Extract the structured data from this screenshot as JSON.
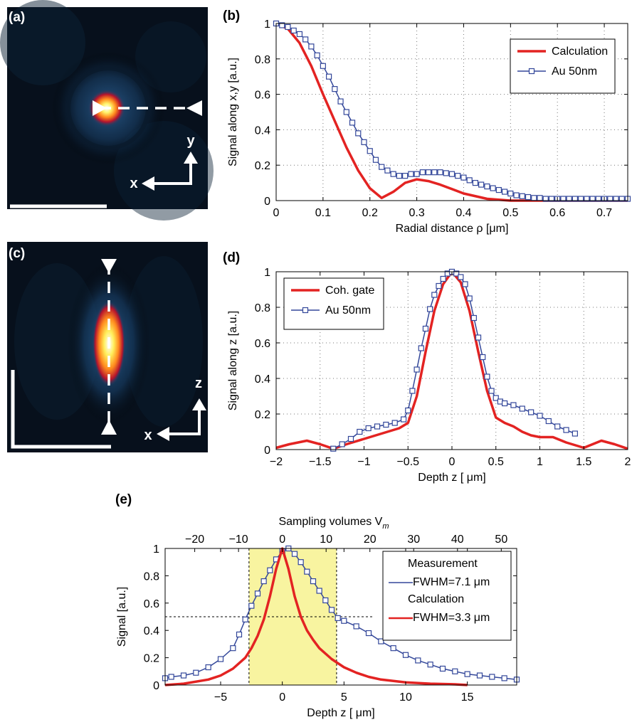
{
  "panels": {
    "a": "(a)",
    "b": "(b)",
    "c": "(c)",
    "d": "(d)",
    "e": "(e)"
  },
  "image_a": {
    "axis_x": "x",
    "axis_y": "y"
  },
  "image_c": {
    "axis_x": "x",
    "axis_z": "z"
  },
  "colors": {
    "calculation": "#e32322",
    "measurement": "#33479a",
    "fwhm_band": "#f8f4a0"
  },
  "chart_data": [
    {
      "type": "line",
      "panel": "(b)",
      "title": "",
      "xlabel": "Radial distance ρ [μm]",
      "ylabel": "Signal along x,y [a.u.]",
      "xlim": [
        0,
        0.75
      ],
      "ylim": [
        0,
        1
      ],
      "xticks": [
        0,
        0.1,
        0.2,
        0.3,
        0.4,
        0.5,
        0.6,
        0.7
      ],
      "xticklabels": [
        "0",
        "0.1",
        "0.2",
        "0.3",
        "0.4",
        "0.5",
        "0.6",
        "0.7"
      ],
      "yticks": [
        0,
        0.2,
        0.4,
        0.6,
        0.8,
        1
      ],
      "yticklabels": [
        "0",
        "0.2",
        "0.4",
        "0.6",
        "0.8",
        "1"
      ],
      "grid": true,
      "legend_position": "top-right",
      "series": [
        {
          "name": "Calculation",
          "style": "line",
          "color": "#e32322",
          "x": [
            0,
            0.025,
            0.05,
            0.075,
            0.1,
            0.125,
            0.15,
            0.175,
            0.2,
            0.225,
            0.25,
            0.275,
            0.3,
            0.325,
            0.35,
            0.4,
            0.45,
            0.5,
            0.75
          ],
          "y": [
            1,
            0.97,
            0.89,
            0.76,
            0.6,
            0.45,
            0.3,
            0.17,
            0.07,
            0.015,
            0.05,
            0.1,
            0.12,
            0.11,
            0.09,
            0.04,
            0.01,
            0,
            0
          ]
        },
        {
          "name": "Au 50nm",
          "style": "line-square",
          "color": "#33479a",
          "x": [
            0,
            0.0125,
            0.025,
            0.0375,
            0.05,
            0.0625,
            0.075,
            0.0875,
            0.1,
            0.1125,
            0.125,
            0.1375,
            0.15,
            0.1625,
            0.175,
            0.1875,
            0.2,
            0.2125,
            0.225,
            0.2375,
            0.25,
            0.2625,
            0.275,
            0.2875,
            0.3,
            0.3125,
            0.325,
            0.3375,
            0.35,
            0.3625,
            0.375,
            0.3875,
            0.4,
            0.4125,
            0.425,
            0.4375,
            0.45,
            0.4625,
            0.475,
            0.4875,
            0.5,
            0.5125,
            0.525,
            0.5375,
            0.55,
            0.5625,
            0.575,
            0.5875,
            0.6,
            0.6125,
            0.625,
            0.6375,
            0.65,
            0.6625,
            0.675,
            0.6875,
            0.7,
            0.7125,
            0.725,
            0.7375,
            0.75
          ],
          "y": [
            1,
            0.99,
            0.98,
            0.96,
            0.94,
            0.91,
            0.87,
            0.82,
            0.76,
            0.7,
            0.63,
            0.56,
            0.5,
            0.44,
            0.38,
            0.33,
            0.28,
            0.23,
            0.19,
            0.17,
            0.15,
            0.14,
            0.14,
            0.15,
            0.15,
            0.16,
            0.16,
            0.16,
            0.16,
            0.155,
            0.15,
            0.14,
            0.13,
            0.115,
            0.1,
            0.09,
            0.08,
            0.07,
            0.06,
            0.05,
            0.04,
            0.03,
            0.025,
            0.02,
            0.015,
            0.015,
            0.01,
            0.01,
            0.01,
            0.01,
            0.01,
            0.01,
            0.01,
            0.01,
            0.01,
            0.01,
            0.01,
            0.01,
            0.01,
            0.01,
            0.01
          ]
        }
      ]
    },
    {
      "type": "line",
      "panel": "(d)",
      "title": "",
      "xlabel": "Depth z [ μm]",
      "ylabel": "Signal along z [a.u.]",
      "xlim": [
        -2,
        2
      ],
      "ylim": [
        0,
        1
      ],
      "xticks": [
        -2,
        -1.5,
        -1,
        -0.5,
        0,
        0.5,
        1,
        1.5,
        2
      ],
      "xticklabels": [
        "−2",
        "−1.5",
        "−1",
        "−0.5",
        "0",
        "0.5",
        "1",
        "1.5",
        "2"
      ],
      "yticks": [
        0,
        0.2,
        0.4,
        0.6,
        0.8,
        1
      ],
      "yticklabels": [
        "0",
        "0.2",
        "0.4",
        "0.6",
        "0.8",
        "1"
      ],
      "grid": true,
      "legend_position": "top-left",
      "series": [
        {
          "name": "Coh. gate",
          "style": "line",
          "color": "#e32322",
          "x": [
            -2,
            -1.85,
            -1.65,
            -1.5,
            -1.35,
            -1.2,
            -1,
            -0.8,
            -0.6,
            -0.5,
            -0.4,
            -0.3,
            -0.2,
            -0.1,
            0,
            0.1,
            0.2,
            0.3,
            0.4,
            0.5,
            0.6,
            0.7,
            0.8,
            0.9,
            1,
            1.15,
            1.3,
            1.5,
            1.7,
            1.85,
            2
          ],
          "y": [
            0.01,
            0.03,
            0.05,
            0.03,
            0.005,
            0.03,
            0.06,
            0.09,
            0.12,
            0.15,
            0.3,
            0.55,
            0.78,
            0.93,
            1,
            0.94,
            0.78,
            0.55,
            0.33,
            0.18,
            0.15,
            0.13,
            0.1,
            0.08,
            0.07,
            0.07,
            0.04,
            0.01,
            0.05,
            0.03,
            0.005
          ]
        },
        {
          "name": "Au 50nm",
          "style": "line-square",
          "color": "#33479a",
          "x": [
            -1.35,
            -1.25,
            -1.15,
            -1.05,
            -0.95,
            -0.85,
            -0.75,
            -0.65,
            -0.55,
            -0.5,
            -0.45,
            -0.4,
            -0.35,
            -0.3,
            -0.25,
            -0.2,
            -0.15,
            -0.1,
            -0.05,
            0,
            0.05,
            0.1,
            0.15,
            0.2,
            0.25,
            0.3,
            0.35,
            0.4,
            0.45,
            0.5,
            0.55,
            0.6,
            0.7,
            0.8,
            0.9,
            1,
            1.1,
            1.2,
            1.3,
            1.4
          ],
          "y": [
            0.005,
            0.03,
            0.06,
            0.1,
            0.12,
            0.13,
            0.14,
            0.15,
            0.17,
            0.22,
            0.33,
            0.45,
            0.57,
            0.68,
            0.79,
            0.87,
            0.92,
            0.96,
            0.99,
            1,
            0.99,
            0.97,
            0.93,
            0.85,
            0.74,
            0.63,
            0.52,
            0.41,
            0.33,
            0.29,
            0.27,
            0.26,
            0.25,
            0.23,
            0.21,
            0.19,
            0.16,
            0.13,
            0.11,
            0.09
          ]
        }
      ]
    },
    {
      "type": "line",
      "panel": "(e)",
      "title": "",
      "xlabel": "Depth z [ μm]",
      "ylabel": "Signal [a.u.]",
      "top_xlabel": "Sampling volumes V",
      "top_xlabel_sub": "m",
      "xlim": [
        -9.5,
        19
      ],
      "ylim": [
        0,
        1
      ],
      "xticks": [
        -5,
        0,
        5,
        10,
        15
      ],
      "xticklabels": [
        "−5",
        "0",
        "5",
        "10",
        "15"
      ],
      "top_xticks": [
        -20,
        -10,
        0,
        10,
        20,
        30,
        40,
        50
      ],
      "top_xticklabels": [
        "−20",
        "−10",
        "0",
        "10",
        "20",
        "30",
        "40",
        "50"
      ],
      "yticks": [
        0,
        0.2,
        0.4,
        0.6,
        0.8,
        1
      ],
      "yticklabels": [
        "0",
        "0.2",
        "0.4",
        "0.6",
        "0.8",
        "1"
      ],
      "grid": false,
      "fwhm_band": [
        -2.7,
        4.4
      ],
      "half_max_line": {
        "y": 0.5,
        "x_from": -9.5,
        "x_to": 7.4
      },
      "legend_position": "top-right",
      "series": [
        {
          "name": "Measurement",
          "fwhm_label": "FWHM=7.1  μm",
          "style": "line-square",
          "color": "#33479a",
          "x": [
            -9.5,
            -9,
            -8,
            -7,
            -6,
            -5,
            -4,
            -3.5,
            -3,
            -2.5,
            -2,
            -1.5,
            -1,
            -0.5,
            0,
            0.5,
            1,
            1.5,
            2,
            2.5,
            3,
            3.5,
            4,
            4.5,
            5,
            6,
            7,
            8,
            9,
            10,
            11,
            12,
            13,
            14,
            15,
            16,
            17,
            18,
            19
          ],
          "y": [
            0.05,
            0.06,
            0.07,
            0.09,
            0.13,
            0.19,
            0.27,
            0.37,
            0.48,
            0.58,
            0.67,
            0.76,
            0.84,
            0.92,
            0.98,
            1,
            0.96,
            0.9,
            0.83,
            0.76,
            0.69,
            0.62,
            0.55,
            0.49,
            0.47,
            0.43,
            0.38,
            0.32,
            0.27,
            0.22,
            0.18,
            0.15,
            0.12,
            0.1,
            0.08,
            0.07,
            0.06,
            0.05,
            0.04
          ]
        },
        {
          "name": "Calculation",
          "fwhm_label": "FWHM=3.3  μm",
          "style": "line",
          "color": "#e32322",
          "x": [
            -9.5,
            -8,
            -6,
            -5,
            -4,
            -3,
            -2.5,
            -2,
            -1.5,
            -1,
            -0.5,
            0,
            0.5,
            1,
            1.5,
            2,
            2.5,
            3,
            4,
            5,
            6,
            7,
            8,
            10,
            12,
            14,
            15
          ],
          "y": [
            0,
            0.01,
            0.04,
            0.07,
            0.12,
            0.2,
            0.27,
            0.36,
            0.48,
            0.65,
            0.85,
            1,
            0.85,
            0.65,
            0.5,
            0.4,
            0.33,
            0.27,
            0.19,
            0.13,
            0.09,
            0.06,
            0.04,
            0.02,
            0.01,
            0.005,
            0
          ]
        }
      ]
    }
  ]
}
